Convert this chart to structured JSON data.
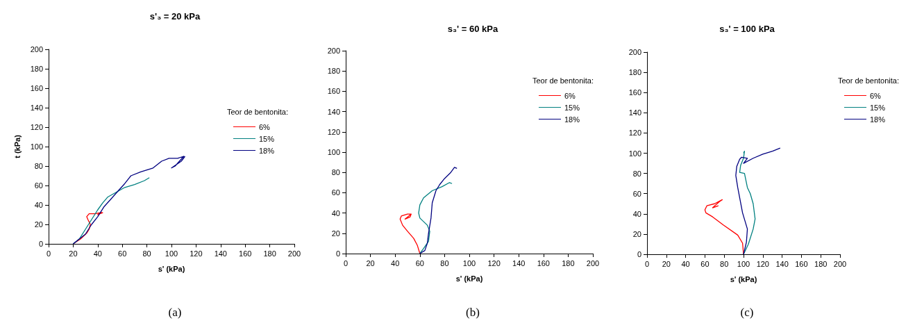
{
  "chart_data": [
    {
      "type": "line",
      "title": "s'₃ = 20 kPa",
      "xlabel": "s' (kPa)",
      "ylabel": "t (kPa)",
      "legend_title": "Teor de bentonita:",
      "legend": "right",
      "marker": "none",
      "grid": false,
      "xlim": [
        0,
        200
      ],
      "ylim": [
        0,
        200
      ],
      "xticks": [
        0,
        20,
        40,
        60,
        80,
        100,
        120,
        140,
        160,
        180,
        200
      ],
      "yticks": [
        0,
        20,
        40,
        60,
        80,
        100,
        120,
        140,
        160,
        180,
        200
      ],
      "annotations": [
        "(a)"
      ],
      "series": [
        {
          "name": "6%",
          "color": "#ff0000",
          "x": [
            20,
            26,
            31,
            33,
            34,
            32,
            31,
            33,
            38,
            42,
            44,
            40,
            43
          ],
          "values": [
            0,
            5,
            11,
            15,
            20,
            25,
            28,
            31,
            31,
            32,
            32,
            30,
            33
          ]
        },
        {
          "name": "15%",
          "color": "#008080",
          "x": [
            20,
            25,
            30,
            35,
            40,
            44,
            48,
            55,
            62,
            70,
            78,
            82
          ],
          "values": [
            0,
            5,
            15,
            25,
            35,
            42,
            48,
            53,
            58,
            61,
            65,
            68
          ]
        },
        {
          "name": "18%",
          "color": "#000080",
          "x": [
            20,
            25,
            30,
            35,
            40,
            45,
            50,
            57,
            62,
            67,
            75,
            85,
            92,
            98,
            105,
            110,
            103,
            100,
            108,
            111
          ],
          "values": [
            0,
            5,
            10,
            20,
            28,
            38,
            45,
            55,
            62,
            70,
            74,
            78,
            85,
            88,
            88,
            90,
            80,
            78,
            85,
            90
          ]
        }
      ]
    },
    {
      "type": "line",
      "title": "s₃' = 60 kPa",
      "xlabel": "s' (kPa)",
      "legend_title": "Teor de bentonita:",
      "legend": "top right",
      "marker": "none",
      "grid": false,
      "xlim": [
        0,
        200
      ],
      "ylim": [
        0,
        200
      ],
      "xticks": [
        0,
        20,
        40,
        60,
        80,
        100,
        120,
        140,
        160,
        180,
        200
      ],
      "yticks": [
        0,
        20,
        40,
        60,
        80,
        100,
        120,
        140,
        160,
        180,
        200
      ],
      "annotations": [
        "(b)"
      ],
      "series": [
        {
          "name": "6%",
          "color": "#ff0000",
          "x": [
            60,
            58,
            55,
            50,
            46,
            44,
            45,
            50,
            53,
            50,
            48,
            52,
            53
          ],
          "values": [
            0,
            8,
            15,
            22,
            28,
            34,
            37,
            39,
            39,
            36,
            34,
            36,
            39
          ]
        },
        {
          "name": "15%",
          "color": "#008080",
          "x": [
            60,
            63,
            67,
            68,
            66,
            60,
            59,
            60,
            63,
            70,
            78,
            84,
            86
          ],
          "values": [
            0,
            5,
            12,
            22,
            28,
            35,
            40,
            48,
            55,
            62,
            66,
            70,
            69
          ]
        },
        {
          "name": "18%",
          "color": "#000080",
          "x": [
            60,
            64,
            66,
            67,
            69,
            70,
            73,
            76,
            80,
            85,
            88,
            90
          ],
          "values": [
            0,
            3,
            10,
            20,
            35,
            50,
            62,
            68,
            74,
            80,
            85,
            84
          ]
        }
      ]
    },
    {
      "type": "line",
      "title": "s₃' = 100 kPa",
      "xlabel": "s' (kPa)",
      "legend_title": "Teor de bentonita:",
      "legend": "top right",
      "marker": "none",
      "grid": false,
      "xlim": [
        0,
        200
      ],
      "ylim": [
        0,
        200
      ],
      "xticks": [
        0,
        20,
        40,
        60,
        80,
        100,
        120,
        140,
        160,
        180,
        200
      ],
      "yticks": [
        0,
        20,
        40,
        60,
        80,
        100,
        120,
        140,
        160,
        180,
        200
      ],
      "annotations": [
        "(c)"
      ],
      "series": [
        {
          "name": "6%",
          "color": "#ff0000",
          "x": [
            100,
            99,
            94,
            79,
            68,
            61,
            60,
            62,
            70,
            78,
            75,
            68,
            74
          ],
          "values": [
            0,
            11,
            19,
            29,
            37,
            41,
            44,
            48,
            50,
            54,
            52,
            46,
            48
          ]
        },
        {
          "name": "15%",
          "color": "#008080",
          "x": [
            100,
            105,
            110,
            112,
            110,
            107,
            104,
            101,
            96,
            97,
            100,
            101,
            100
          ],
          "values": [
            0,
            10,
            25,
            35,
            50,
            60,
            66,
            80,
            81,
            88,
            95,
            102,
            100
          ]
        },
        {
          "name": "18%",
          "color": "#000080",
          "x": [
            100,
            103,
            104,
            99,
            94,
            92,
            93,
            96,
            98,
            104,
            100,
            110,
            120,
            130,
            138
          ],
          "values": [
            0,
            12,
            25,
            41,
            66,
            78,
            87,
            94,
            96,
            95,
            90,
            95,
            99,
            102,
            105
          ]
        }
      ]
    }
  ]
}
